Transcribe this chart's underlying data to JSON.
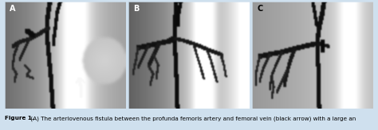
{
  "figure_width": 4.74,
  "figure_height": 1.64,
  "dpi": 100,
  "bg_color": "#cfe0ee",
  "border_color": "#b0c8d8",
  "panels": [
    "A",
    "B",
    "C"
  ],
  "label_fontsize": 7,
  "caption_fontsize": 5.2,
  "caption_bold": "Figure 1.",
  "caption_rest": " (A) The arteriovenous fistula between the profunda femoris artery and femoral vein (black arrow) with a large an"
}
